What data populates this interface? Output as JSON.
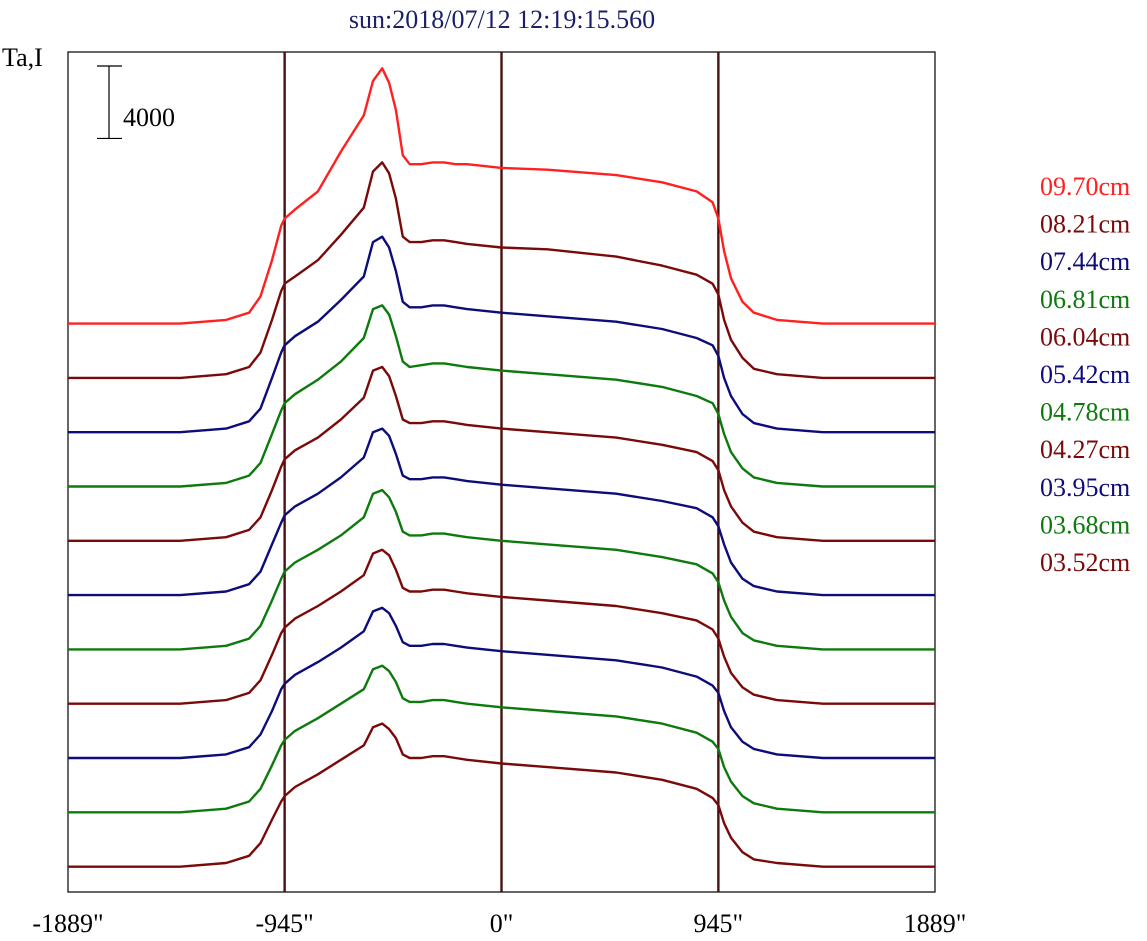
{
  "chart_data": {
    "type": "line",
    "title": "sun:2018/07/12 12:19:15.560",
    "ylabel": "Ta,I",
    "scale_bar_label": "4000",
    "scale_bar_value": 4000,
    "x_ticks": [
      {
        "value": -1889,
        "label": "-1889\""
      },
      {
        "value": -945,
        "label": "-945\""
      },
      {
        "value": 0,
        "label": "0\""
      },
      {
        "value": 945,
        "label": "945\""
      },
      {
        "value": 1889,
        "label": "1889\""
      }
    ],
    "vertical_lines": [
      -945,
      0,
      945
    ],
    "xlim": [
      -1889,
      1889
    ],
    "ylim": [
      -1400,
      45000
    ],
    "offset_step": 3000,
    "x": [
      -1889,
      -1400,
      -1200,
      -1100,
      -1050,
      -1000,
      -960,
      -945,
      -900,
      -800,
      -700,
      -600,
      -560,
      -520,
      -490,
      -460,
      -430,
      -400,
      -350,
      -300,
      -250,
      -200,
      -150,
      0,
      200,
      500,
      700,
      850,
      920,
      945,
      970,
      1000,
      1050,
      1100,
      1200,
      1400,
      1889
    ],
    "series": [
      {
        "name": "09.70cm",
        "color": "#ff2020",
        "offset": 30000,
        "values": [
          0,
          0,
          200,
          600,
          1500,
          3500,
          5400,
          5800,
          6300,
          7300,
          9500,
          11500,
          13400,
          14100,
          13300,
          11800,
          9300,
          8800,
          8800,
          8900,
          8900,
          8800,
          8800,
          8600,
          8500,
          8200,
          7800,
          7300,
          6700,
          5800,
          4000,
          2500,
          1200,
          600,
          200,
          0,
          0
        ]
      },
      {
        "name": "08.21cm",
        "color": "#7a0a0a",
        "offset": 27000,
        "values": [
          0,
          0,
          200,
          600,
          1400,
          3200,
          4800,
          5200,
          5600,
          6500,
          7900,
          9400,
          11400,
          11900,
          11300,
          9900,
          7800,
          7500,
          7500,
          7600,
          7600,
          7500,
          7400,
          7200,
          7100,
          6700,
          6200,
          5700,
          5200,
          4600,
          3200,
          2100,
          1100,
          500,
          200,
          0,
          0
        ]
      },
      {
        "name": "07.44cm",
        "color": "#0d0d7a",
        "offset": 24000,
        "values": [
          0,
          0,
          200,
          600,
          1300,
          3000,
          4400,
          4800,
          5300,
          6100,
          7300,
          8600,
          10500,
          10800,
          10200,
          8900,
          7200,
          6900,
          6900,
          7000,
          7000,
          6900,
          6800,
          6600,
          6400,
          6100,
          5700,
          5200,
          4800,
          4200,
          3000,
          2000,
          1000,
          500,
          200,
          0,
          0
        ]
      },
      {
        "name": "06.81cm",
        "color": "#0d7a0d",
        "offset": 21000,
        "values": [
          0,
          0,
          200,
          600,
          1300,
          2900,
          4200,
          4600,
          5100,
          5900,
          6900,
          8200,
          9800,
          10000,
          9500,
          8300,
          6900,
          6600,
          6700,
          6800,
          6800,
          6700,
          6600,
          6400,
          6200,
          5900,
          5500,
          5000,
          4600,
          4000,
          2900,
          1900,
          1000,
          500,
          200,
          0,
          0
        ]
      },
      {
        "name": "06.04cm",
        "color": "#7a0a0a",
        "offset": 18000,
        "values": [
          0,
          0,
          200,
          600,
          1300,
          2800,
          4100,
          4500,
          5000,
          5700,
          6700,
          7900,
          9400,
          9600,
          9100,
          8000,
          6700,
          6500,
          6500,
          6600,
          6600,
          6500,
          6400,
          6200,
          6000,
          5700,
          5300,
          4900,
          4400,
          3900,
          2800,
          1900,
          1000,
          500,
          200,
          0,
          0
        ]
      },
      {
        "name": "05.42cm",
        "color": "#0d0d7a",
        "offset": 15000,
        "values": [
          0,
          0,
          200,
          600,
          1300,
          2800,
          4000,
          4400,
          4900,
          5600,
          6500,
          7600,
          9000,
          9200,
          8800,
          7800,
          6600,
          6400,
          6400,
          6500,
          6500,
          6400,
          6300,
          6100,
          5900,
          5600,
          5200,
          4800,
          4300,
          3800,
          2800,
          1800,
          900,
          500,
          200,
          0,
          0
        ]
      },
      {
        "name": "04.78cm",
        "color": "#0d7a0d",
        "offset": 12000,
        "values": [
          0,
          0,
          200,
          600,
          1300,
          2700,
          3900,
          4300,
          4800,
          5500,
          6300,
          7300,
          8600,
          8800,
          8400,
          7600,
          6500,
          6300,
          6300,
          6400,
          6400,
          6300,
          6200,
          6000,
          5800,
          5500,
          5100,
          4700,
          4200,
          3700,
          2700,
          1800,
          900,
          500,
          200,
          0,
          0
        ]
      },
      {
        "name": "04.27cm",
        "color": "#7a0a0a",
        "offset": 9000,
        "values": [
          0,
          0,
          200,
          600,
          1300,
          2700,
          3900,
          4200,
          4700,
          5400,
          6200,
          7100,
          8300,
          8500,
          8200,
          7400,
          6400,
          6200,
          6200,
          6300,
          6300,
          6200,
          6100,
          5900,
          5700,
          5400,
          5000,
          4600,
          4100,
          3600,
          2600,
          1700,
          900,
          500,
          200,
          0,
          0
        ]
      },
      {
        "name": "03.95cm",
        "color": "#0d0d7a",
        "offset": 6000,
        "values": [
          0,
          0,
          200,
          600,
          1300,
          2600,
          3800,
          4100,
          4600,
          5300,
          6100,
          7000,
          8100,
          8300,
          8000,
          7300,
          6400,
          6200,
          6200,
          6300,
          6300,
          6200,
          6100,
          5900,
          5700,
          5400,
          5000,
          4500,
          4000,
          3600,
          2600,
          1700,
          900,
          500,
          200,
          0,
          0
        ]
      },
      {
        "name": "03.68cm",
        "color": "#0d7a0d",
        "offset": 3000,
        "values": [
          0,
          0,
          200,
          600,
          1300,
          2600,
          3700,
          4000,
          4500,
          5200,
          6000,
          6800,
          7900,
          8100,
          7800,
          7200,
          6300,
          6100,
          6100,
          6200,
          6200,
          6100,
          6000,
          5800,
          5600,
          5300,
          4900,
          4400,
          3900,
          3500,
          2500,
          1700,
          900,
          500,
          200,
          0,
          0
        ]
      },
      {
        "name": "03.52cm",
        "color": "#7a0a0a",
        "offset": 0,
        "values": [
          0,
          0,
          200,
          600,
          1300,
          2600,
          3600,
          3900,
          4400,
          5100,
          5900,
          6700,
          7700,
          7900,
          7600,
          7100,
          6200,
          6000,
          6000,
          6100,
          6100,
          6000,
          5900,
          5700,
          5500,
          5200,
          4800,
          4300,
          3800,
          3400,
          2400,
          1600,
          800,
          400,
          200,
          0,
          0
        ]
      }
    ],
    "colors": {
      "frame": "#000000",
      "vline": "#4a1010",
      "title": "#1b1f6a"
    },
    "grid": false,
    "legend_placement": "right"
  }
}
